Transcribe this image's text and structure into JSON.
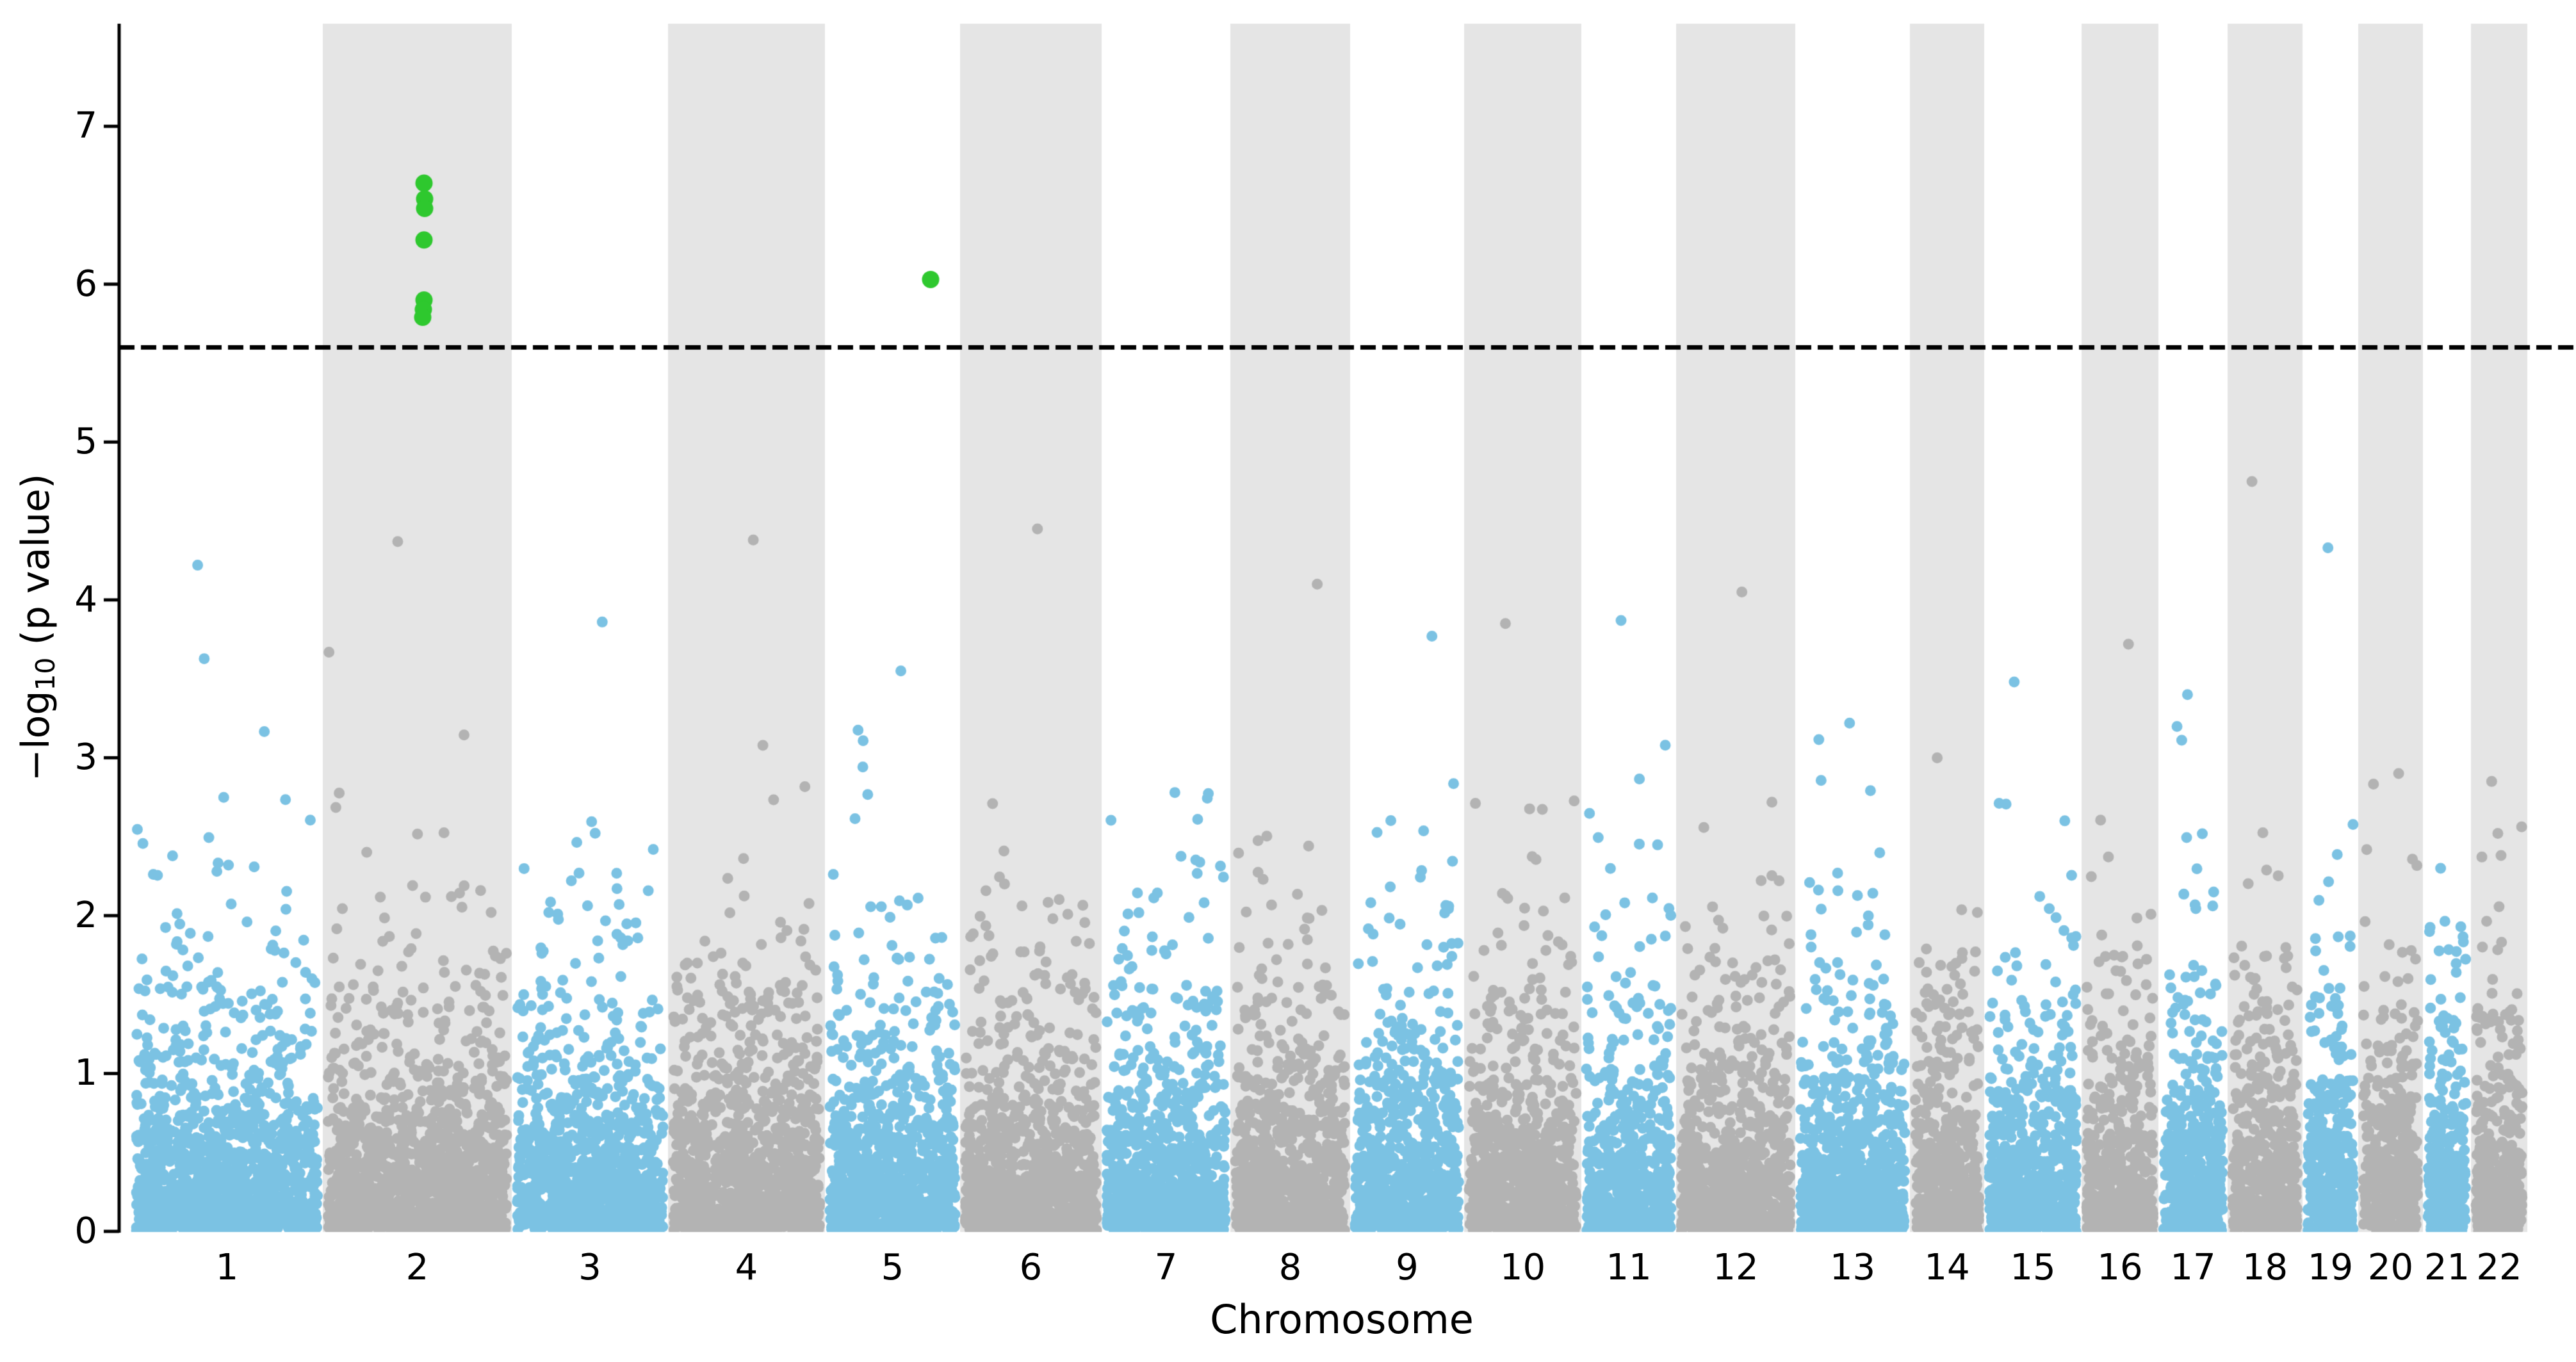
{
  "figure": {
    "background": "#ffffff",
    "kind": "Manhattan plot (GWAS)"
  },
  "chart_data": {
    "type": "scatter",
    "subtype": "manhattan",
    "title": "",
    "xlabel": "Chromosome",
    "ylabel": "−log₁₀ (p value)",
    "ylabel_parts": {
      "prefix": "−log",
      "subscript": "10",
      "suffix": " (p value)"
    },
    "y_ticks": [
      "0",
      "1",
      "2",
      "3",
      "4",
      "5",
      "6",
      "7"
    ],
    "ylim": [
      0,
      7.65
    ],
    "grid": false,
    "legend": "none",
    "threshold_line": {
      "value": 5.6,
      "style": "dashed",
      "color": "#000000"
    },
    "colors": {
      "odd_points": "#7BC2E3",
      "even_points": "#B3B3B3",
      "band": "#E5E5E5",
      "significant": "#2EC82E",
      "axis": "#000000",
      "text": "#000000"
    },
    "chromosomes": [
      {
        "label": "1",
        "x_start": 205,
        "x_end": 504,
        "shaded": false,
        "max_neglog10p": 4.22,
        "n_points": 1256
      },
      {
        "label": "2",
        "x_start": 504,
        "x_end": 799,
        "shaded": true,
        "max_neglog10p": 4.37,
        "n_points": 1239
      },
      {
        "label": "3",
        "x_start": 799,
        "x_end": 1043,
        "shaded": false,
        "max_neglog10p": 3.86,
        "n_points": 1025
      },
      {
        "label": "4",
        "x_start": 1043,
        "x_end": 1288,
        "shaded": true,
        "max_neglog10p": 4.38,
        "n_points": 1029
      },
      {
        "label": "5",
        "x_start": 1288,
        "x_end": 1499,
        "shaded": false,
        "max_neglog10p": 3.55,
        "n_points": 886
      },
      {
        "label": "6",
        "x_start": 1499,
        "x_end": 1720,
        "shaded": true,
        "max_neglog10p": 4.45,
        "n_points": 928
      },
      {
        "label": "7",
        "x_start": 1720,
        "x_end": 1921,
        "shaded": false,
        "max_neglog10p": 2.78,
        "n_points": 844
      },
      {
        "label": "8",
        "x_start": 1921,
        "x_end": 2108,
        "shaded": true,
        "max_neglog10p": 4.1,
        "n_points": 785
      },
      {
        "label": "9",
        "x_start": 2108,
        "x_end": 2286,
        "shaded": false,
        "max_neglog10p": 3.77,
        "n_points": 748
      },
      {
        "label": "10",
        "x_start": 2286,
        "x_end": 2469,
        "shaded": true,
        "max_neglog10p": 3.85,
        "n_points": 769
      },
      {
        "label": "11",
        "x_start": 2469,
        "x_end": 2617,
        "shaded": false,
        "max_neglog10p": 3.87,
        "n_points": 622
      },
      {
        "label": "12",
        "x_start": 2617,
        "x_end": 2803,
        "shaded": true,
        "max_neglog10p": 4.05,
        "n_points": 781
      },
      {
        "label": "13",
        "x_start": 2803,
        "x_end": 2982,
        "shaded": false,
        "max_neglog10p": 3.22,
        "n_points": 752
      },
      {
        "label": "14",
        "x_start": 2982,
        "x_end": 3098,
        "shaded": true,
        "max_neglog10p": 3.0,
        "n_points": 487
      },
      {
        "label": "15",
        "x_start": 3098,
        "x_end": 3250,
        "shaded": false,
        "max_neglog10p": 3.48,
        "n_points": 638
      },
      {
        "label": "16",
        "x_start": 3250,
        "x_end": 3370,
        "shaded": true,
        "max_neglog10p": 3.72,
        "n_points": 504
      },
      {
        "label": "17",
        "x_start": 3370,
        "x_end": 3478,
        "shaded": false,
        "max_neglog10p": 3.4,
        "n_points": 454
      },
      {
        "label": "18",
        "x_start": 3478,
        "x_end": 3595,
        "shaded": true,
        "max_neglog10p": 4.75,
        "n_points": 491
      },
      {
        "label": "19",
        "x_start": 3595,
        "x_end": 3682,
        "shaded": false,
        "max_neglog10p": 4.33,
        "n_points": 365
      },
      {
        "label": "20",
        "x_start": 3682,
        "x_end": 3783,
        "shaded": true,
        "max_neglog10p": 2.9,
        "n_points": 424
      },
      {
        "label": "21",
        "x_start": 3783,
        "x_end": 3858,
        "shaded": false,
        "max_neglog10p": 2.3,
        "n_points": 315
      },
      {
        "label": "22",
        "x_start": 3858,
        "x_end": 3946,
        "shaded": true,
        "max_neglog10p": 2.85,
        "n_points": 370
      }
    ],
    "significant_points": [
      {
        "chromosome": "2",
        "x": 662,
        "value": 6.64
      },
      {
        "chromosome": "2",
        "x": 663,
        "value": 6.54
      },
      {
        "chromosome": "2",
        "x": 663,
        "value": 6.48
      },
      {
        "chromosome": "2",
        "x": 662,
        "value": 6.28
      },
      {
        "chromosome": "2",
        "x": 662,
        "value": 5.9
      },
      {
        "chromosome": "2",
        "x": 661,
        "value": 5.84
      },
      {
        "chromosome": "2",
        "x": 660,
        "value": 5.79
      },
      {
        "chromosome": "5",
        "x": 1453,
        "value": 6.03
      }
    ]
  }
}
